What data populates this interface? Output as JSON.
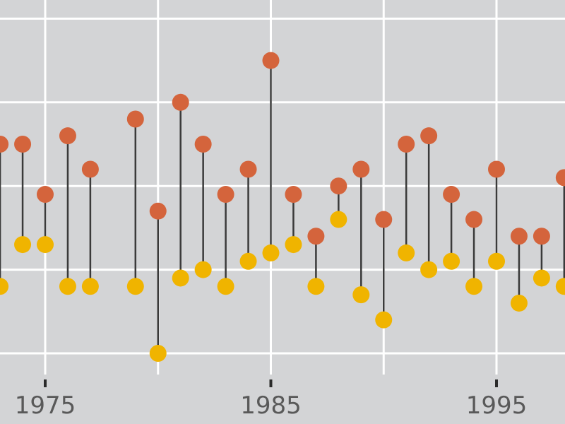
{
  "chart_data": {
    "type": "dumbbell",
    "title": "",
    "xlabel": "",
    "ylabel": "",
    "xlim": [
      1973.0,
      1998.2
    ],
    "ylim": [
      0.5,
      5.2
    ],
    "x_ticks": [
      1975,
      1985,
      1995
    ],
    "x_tick_labels": [
      "1975",
      "1985",
      "1995"
    ],
    "grid": true,
    "colors": {
      "background": "#d3d4d6",
      "grid": "#ffffff",
      "segment": "#3a3a3a",
      "upper_series": "#d4643c",
      "lower_series": "#f0b400"
    },
    "series": [
      {
        "x": [
          1973,
          1974,
          1975,
          1976,
          1977,
          1979,
          1980,
          1981,
          1982,
          1983,
          1984,
          1985,
          1986,
          1987,
          1988,
          1989,
          1990,
          1991,
          1992,
          1993,
          1994,
          1995,
          1996,
          1997,
          1998
        ],
        "values": [
          3.5,
          3.5,
          2.9,
          3.6,
          3.2,
          3.8,
          2.7,
          4.0,
          3.5,
          2.9,
          3.2,
          4.5,
          2.9,
          2.4,
          3.0,
          3.2,
          2.6,
          3.5,
          3.6,
          2.9,
          2.6,
          3.2,
          2.4,
          2.4,
          3.1
        ]
      },
      {
        "x": [
          1973,
          1974,
          1975,
          1976,
          1977,
          1979,
          1980,
          1981,
          1982,
          1983,
          1984,
          1985,
          1986,
          1987,
          1988,
          1989,
          1990,
          1991,
          1992,
          1993,
          1994,
          1995,
          1996,
          1997,
          1998
        ],
        "values": [
          1.8,
          2.3,
          2.3,
          1.8,
          1.8,
          1.8,
          1.0,
          1.9,
          2.0,
          1.8,
          2.1,
          2.2,
          2.3,
          1.8,
          2.6,
          1.7,
          1.4,
          2.2,
          2.0,
          2.1,
          1.8,
          2.1,
          1.6,
          1.9,
          1.8
        ]
      }
    ]
  }
}
